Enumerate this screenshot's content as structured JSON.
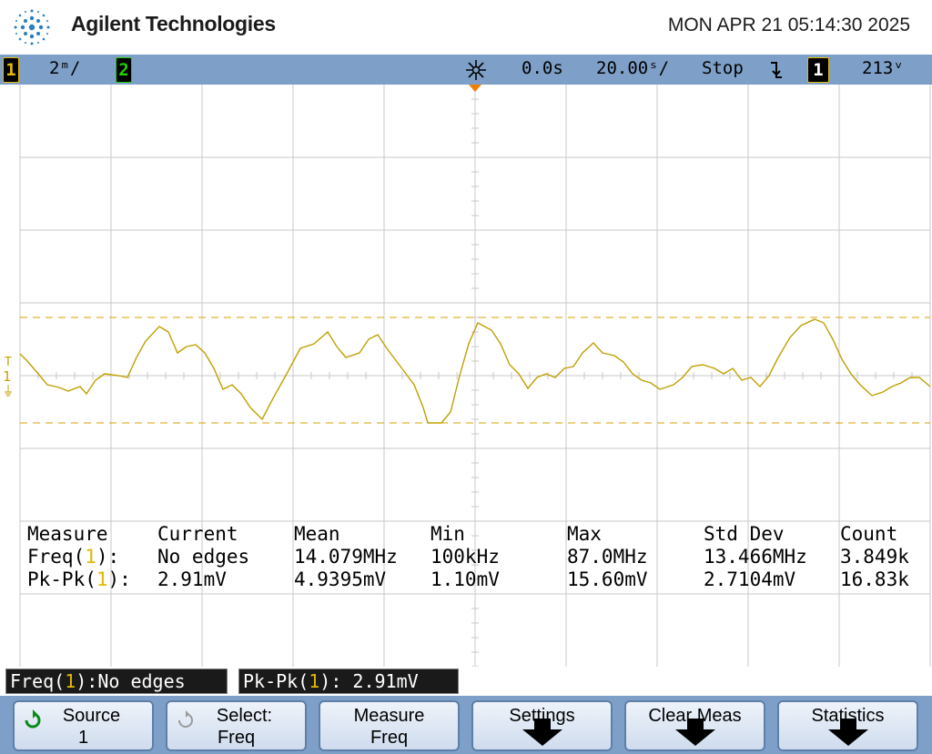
{
  "header": {
    "brand": "Agilent Technologies",
    "datetime": "MON APR 21 05:14:30 2025",
    "logo_icon": "agilent-spark-icon"
  },
  "status": {
    "ch1_label": "1",
    "ch1_scale": "2ᵐ/",
    "ch2_label": "2",
    "time_ref_icon": "time-reference-icon",
    "delay": "0.0s",
    "timebase": "20.00ˢ/",
    "run_state": "Stop",
    "trigger_edge_icon": "falling-edge-icon",
    "trigger_source": "1",
    "trigger_level": "213ᵛ"
  },
  "colors": {
    "ch1": "#c8a000",
    "ch2": "#22b000",
    "grid": "#c8c8c8",
    "statusbar": "#7ea0c8"
  },
  "measurements": {
    "headers": [
      "Measure",
      "Current",
      "Mean",
      "Min",
      "Max",
      "Std Dev",
      "Count"
    ],
    "rows": [
      {
        "name_prefix": "Freq(",
        "source": "1",
        "name_suffix": "):",
        "values": [
          "No edges",
          "14.079MHz",
          "100kHz",
          "87.0MHz",
          "13.466MHz",
          "3.849k"
        ]
      },
      {
        "name_prefix": "Pk-Pk(",
        "source": "1",
        "name_suffix": "):",
        "values": [
          "2.91mV",
          "4.9395mV",
          "1.10mV",
          "15.60mV",
          "2.7104mV",
          "16.83k"
        ]
      }
    ]
  },
  "readouts": [
    {
      "prefix": "Freq(",
      "source": "1",
      "suffix": "):No edges"
    },
    {
      "prefix": "Pk-Pk(",
      "source": "1",
      "suffix": "): 2.91mV"
    }
  ],
  "softkeys": {
    "source": {
      "line1": "Source",
      "line2": "1",
      "icon": "rotate-knob-icon"
    },
    "select": {
      "line1": "Select:",
      "line2": "Freq",
      "icon": "rotate-knob-icon"
    },
    "measure": {
      "line1": "Measure",
      "line2": "Freq"
    },
    "settings": {
      "line1": "Settings",
      "icon": "submenu-arrow-icon"
    },
    "clear": {
      "line1": "Clear Meas",
      "icon": "submenu-arrow-icon"
    },
    "statistics": {
      "line1": "Statistics",
      "icon": "submenu-arrow-icon"
    }
  },
  "trace": {
    "name": "channel-1",
    "markers": {
      "ch1_ground": "1",
      "trigger_level": "T"
    }
  }
}
